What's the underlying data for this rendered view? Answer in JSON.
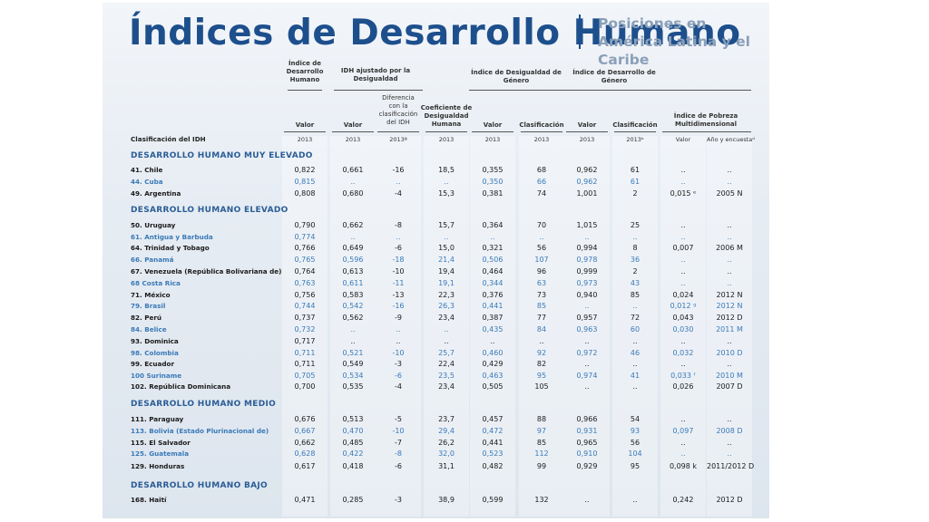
{
  "header": {
    "title": "Índices de Desarrollo Humano",
    "subtitle": "Posiciones en América Latina y el Caribe"
  },
  "table": {
    "group_headers": [
      "Índice de Desarrollo Humano",
      "IDH ajustado por la Desigualdad",
      "Índice de Desigualdad de Género",
      "Índice de Desarrollo de Género"
    ],
    "sub_headers": [
      "Valor",
      "Valor",
      "Diferencia con la clasificación del IDH",
      "Coeficiente de Desigualdad Humana",
      "Valor",
      "Clasificación",
      "Valor",
      "Clasificación",
      "Índice de Pobreza Multidimensional"
    ],
    "row_header": "Clasificación del IDH",
    "years": [
      "2013",
      "2013",
      "2013ª",
      "2013",
      "2013",
      "2013",
      "2013",
      "2013ᵇ",
      "Valor",
      "Año y encuestaᵈ"
    ],
    "sections": [
      {
        "title": "DESARROLLO HUMANO MUY ELEVADO",
        "rows": [
          {
            "name": "41. Chile",
            "color": "#1a1a1a",
            "cells": [
              "0,822",
              "0,661",
              "-16",
              "18,5",
              "0,355",
              "68",
              "0,962",
              "61",
              "..",
              ".."
            ]
          },
          {
            "name": "44. Cuba",
            "color": "#3a7ab8",
            "cells": [
              "0,815",
              "..",
              "..",
              "..",
              "0,350",
              "66",
              "0,962",
              "61",
              "..",
              ".."
            ]
          },
          {
            "name": "49. Argentina",
            "color": "#1a1a1a",
            "cells": [
              "0,808",
              "0,680",
              "-4",
              "15,3",
              "0,381",
              "74",
              "1,001",
              "2",
              "0,015 ᵉ",
              "2005 N"
            ]
          }
        ]
      },
      {
        "title": "DESARROLLO HUMANO ELEVADO",
        "rows": [
          {
            "name": "50. Uruguay",
            "color": "#1a1a1a",
            "cells": [
              "0,790",
              "0,662",
              "-8",
              "15,7",
              "0,364",
              "70",
              "1,015",
              "25",
              "..",
              ".."
            ]
          },
          {
            "name": "61. Antigua y Barbuda",
            "color": "#3a7ab8",
            "cells": [
              "0,774",
              "..",
              "..",
              "..",
              "..",
              "..",
              "..",
              "..",
              "..",
              ".."
            ]
          },
          {
            "name": "64. Trinidad y Tobago",
            "color": "#1a1a1a",
            "cells": [
              "0,766",
              "0,649",
              "-6",
              "15,0",
              "0,321",
              "56",
              "0,994",
              "8",
              "0,007",
              "2006 M"
            ]
          },
          {
            "name": "66. Panamá",
            "color": "#3a7ab8",
            "cells": [
              "0,765",
              "0,596",
              "-18",
              "21,4",
              "0,506",
              "107",
              "0,978",
              "36",
              "..",
              ".."
            ]
          },
          {
            "name": "67. Venezuela (República Bolivariana de)",
            "color": "#1a1a1a",
            "cells": [
              "0,764",
              "0,613",
              "-10",
              "19,4",
              "0,464",
              "96",
              "0,999",
              "2",
              "..",
              ".."
            ]
          },
          {
            "name": "68 Costa Rica",
            "color": "#3a7ab8",
            "cells": [
              "0,763",
              "0,611",
              "-11",
              "19,1",
              "0,344",
              "63",
              "0,973",
              "43",
              "..",
              ".."
            ]
          },
          {
            "name": "71. México",
            "color": "#1a1a1a",
            "cells": [
              "0,756",
              "0,583",
              "-13",
              "22,3",
              "0,376",
              "73",
              "0,940",
              "85",
              "0,024",
              "2012 N"
            ]
          },
          {
            "name": "79. Brasil",
            "color": "#3a7ab8",
            "cells": [
              "0,744",
              "0,542",
              "-16",
              "26,3",
              "0,441",
              "85",
              "..",
              "..",
              "0,012 ᵍ",
              "2012 N"
            ]
          },
          {
            "name": "82. Perú",
            "color": "#1a1a1a",
            "cells": [
              "0,737",
              "0,562",
              "-9",
              "23,4",
              "0,387",
              "77",
              "0,957",
              "72",
              "0,043",
              "2012 D"
            ]
          },
          {
            "name": "84. Belice",
            "color": "#3a7ab8",
            "cells": [
              "0,732",
              "..",
              "..",
              "..",
              "0,435",
              "84",
              "0,963",
              "60",
              "0,030",
              "2011 M"
            ]
          },
          {
            "name": "93. Dominica",
            "color": "#1a1a1a",
            "cells": [
              "0,717",
              "..",
              "..",
              "..",
              "..",
              "..",
              "..",
              "..",
              "..",
              ".."
            ]
          },
          {
            "name": "98. Colombia",
            "color": "#3a7ab8",
            "cells": [
              "0,711",
              "0,521",
              "-10",
              "25,7",
              "0,460",
              "92",
              "0,972",
              "46",
              "0,032",
              "2010 D"
            ]
          },
          {
            "name": "99. Ecuador",
            "color": "#1a1a1a",
            "cells": [
              "0,711",
              "0,549",
              "-3",
              "22,4",
              "0,429",
              "82",
              "..",
              "..",
              "..",
              ".."
            ]
          },
          {
            "name": "100 Suriname",
            "color": "#3a7ab8",
            "cells": [
              "0,705",
              "0,534",
              "-6",
              "23,5",
              "0,463",
              "95",
              "0,974",
              "41",
              "0,033 ᶠ",
              "2010 M"
            ]
          },
          {
            "name": "102. República Dominicana",
            "color": "#1a1a1a",
            "cells": [
              "0,700",
              "0,535",
              "-4",
              "23,4",
              "0,505",
              "105",
              "..",
              "..",
              "0,026",
              "2007 D"
            ]
          }
        ]
      },
      {
        "title": "DESARROLLO HUMANO MEDIO",
        "rows": [
          {
            "name": "111. Paraguay",
            "color": "#1a1a1a",
            "cells": [
              "0,676",
              "0,513",
              "-5",
              "23,7",
              "0,457",
              "88",
              "0,966",
              "54",
              "..",
              ".."
            ]
          },
          {
            "name": "113. Bolivia (Estado Plurinacional de)",
            "color": "#3a7ab8",
            "cells": [
              "0,667",
              "0,470",
              "-10",
              "29,4",
              "0,472",
              "97",
              "0,931",
              "93",
              "0,097",
              "2008 D"
            ]
          },
          {
            "name": "115. El Salvador",
            "color": "#1a1a1a",
            "cells": [
              "0,662",
              "0,485",
              "-7",
              "26,2",
              "0,441",
              "85",
              "0,965",
              "56",
              "..",
              ".."
            ]
          },
          {
            "name": "125. Guatemala",
            "color": "#3a7ab8",
            "cells": [
              "0,628",
              "0,422",
              "-8",
              "32,0",
              "0,523",
              "112",
              "0,910",
              "104",
              "..",
              ".."
            ]
          },
          {
            "name": "129. Honduras",
            "color": "#1a1a1a",
            "cells": [
              "0,617",
              "0,418",
              "-6",
              "31,1",
              "0,482",
              "99",
              "0,929",
              "95",
              "0,098 k",
              "2011/2012 D"
            ]
          }
        ]
      },
      {
        "title": "DESARROLLO HUMANO BAJO",
        "rows": [
          {
            "name": "168. Haití",
            "color": "#1a1a1a",
            "cells": [
              "0,471",
              "0,285",
              "-3",
              "38,9",
              "0,599",
              "132",
              "..",
              "..",
              "0,242",
              "2012 D"
            ]
          }
        ]
      }
    ]
  }
}
